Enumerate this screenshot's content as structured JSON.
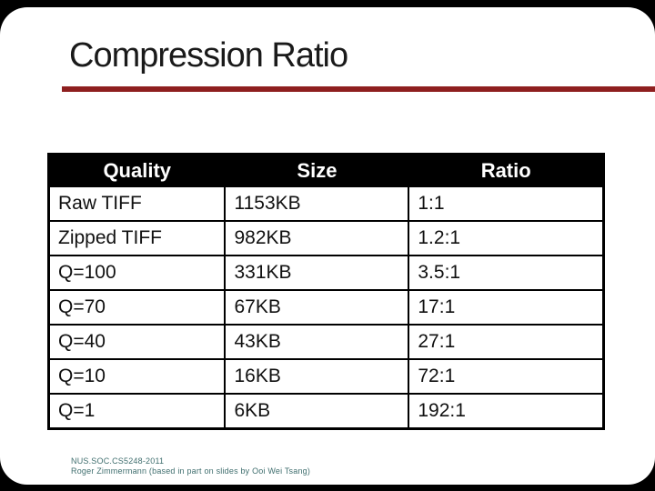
{
  "slide": {
    "title": "Compression Ratio",
    "accent_color": "#8e1f1f",
    "header_bg_color": "#000000",
    "header_text_color": "#ffffff",
    "footer_text_color": "#3f6e6e",
    "footer": {
      "line1": "NUS.SOC.CS5248-2011",
      "line2": "Roger Zimmermann (based in part on slides by Ooi Wei Tsang)"
    }
  },
  "chart_data": {
    "type": "table",
    "title": "Compression Ratio",
    "columns": [
      "Quality",
      "Size",
      "Ratio"
    ],
    "rows": [
      [
        "Raw TIFF",
        "1153KB",
        "1:1"
      ],
      [
        "Zipped TIFF",
        "982KB",
        "1.2:1"
      ],
      [
        "Q=100",
        "331KB",
        "3.5:1"
      ],
      [
        "Q=70",
        "67KB",
        "17:1"
      ],
      [
        "Q=40",
        "43KB",
        "27:1"
      ],
      [
        "Q=10",
        "16KB",
        "72:1"
      ],
      [
        "Q=1",
        "6KB",
        "192:1"
      ]
    ]
  }
}
